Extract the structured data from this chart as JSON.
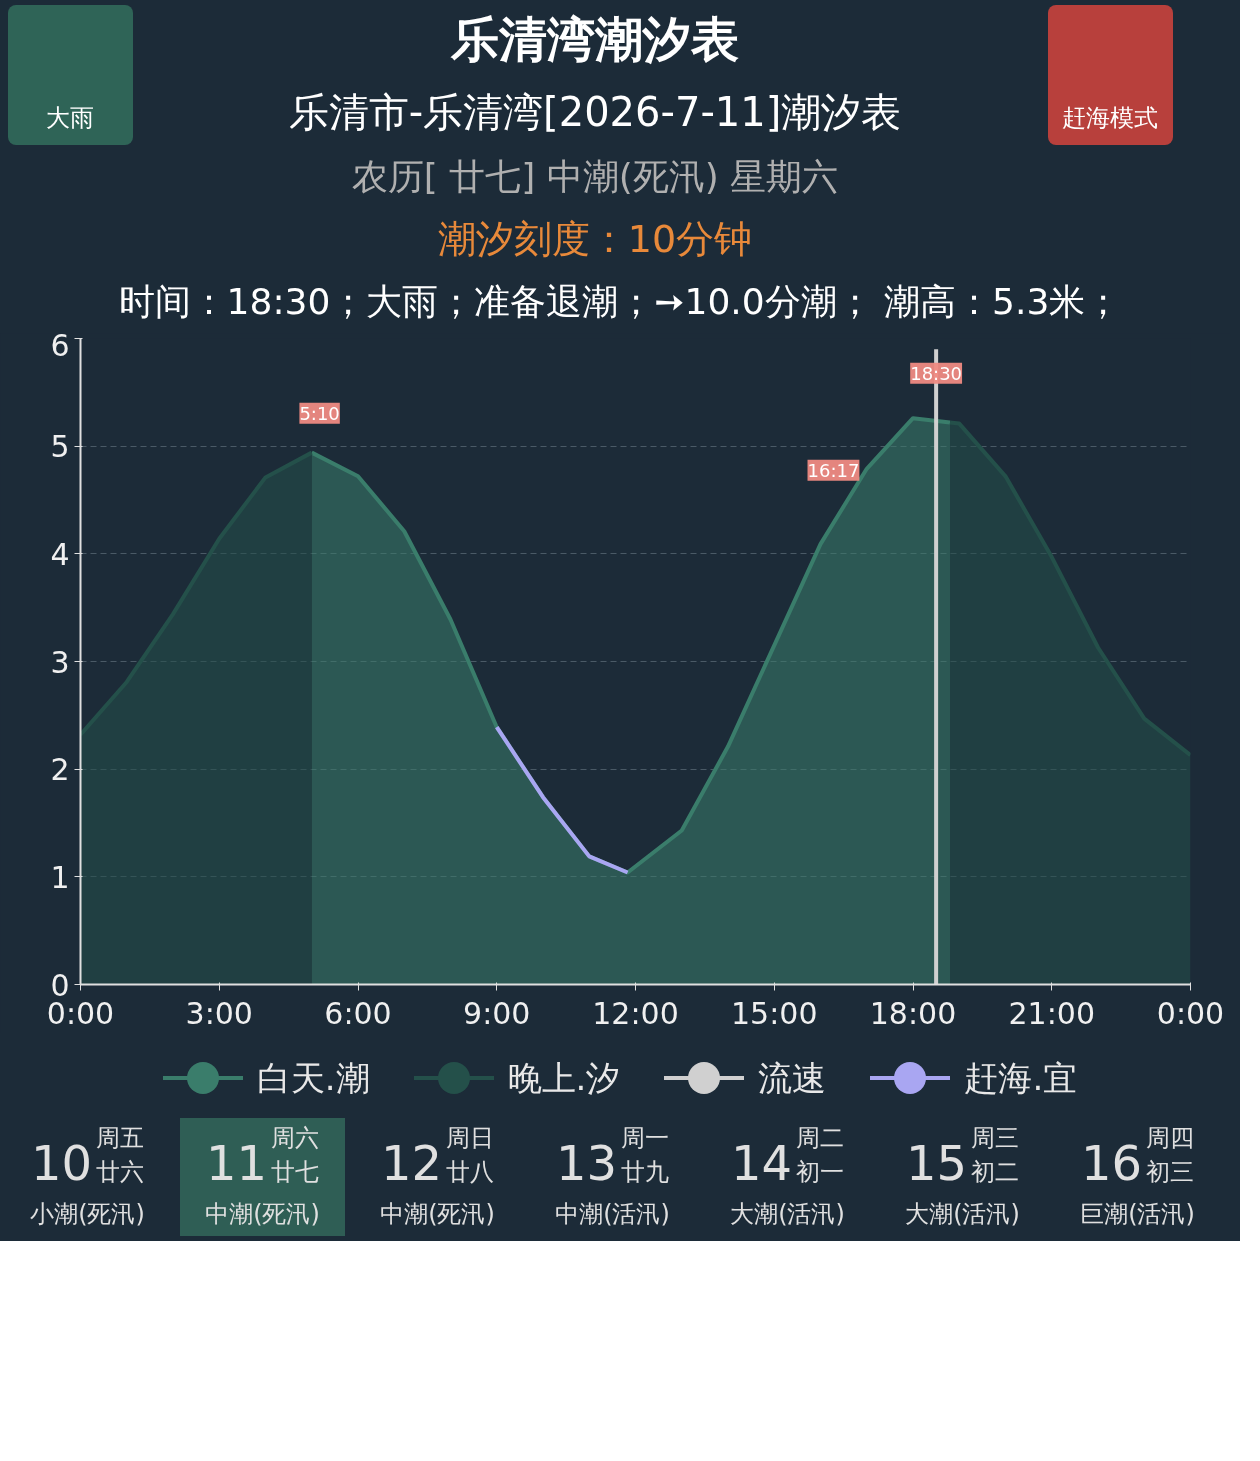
{
  "chart_data": {
    "type": "area",
    "title": "乐清市-乐清湾[2026-7-11]潮汐表",
    "subtitle": "农历[ 廿七] 中潮(死汛) 星期六",
    "annotations": [
      "乐清湾潮汐表",
      "潮汐刻度：10分钟",
      "大雨",
      "赶海模式",
      "时间：18:30；大雨；准备退潮；➙10.0分潮； 潮高：5.3米；",
      "10",
      "周五",
      "廿六",
      "小潮(死汛)",
      "11",
      "周六",
      "廿七",
      "中潮(死汛)",
      "12",
      "周日",
      "廿八",
      "中潮(死汛)",
      "13",
      "周一",
      "廿九",
      "中潮(活汛)",
      "14",
      "周二",
      "初一",
      "大潮(活汛)",
      "15",
      "周三",
      "初二",
      "大潮(活汛)",
      "16",
      "周四",
      "初三",
      "巨潮(活汛)",
      {
        "text": "5:10",
        "x": 5.17,
        "y": 4.93
      },
      {
        "text": "16:17",
        "x": 16.28,
        "y": 4.4
      },
      {
        "text": "18:30",
        "x": 18.5,
        "y": 5.3
      }
    ],
    "series": [
      {
        "name": "白天.潮",
        "color": "#3a7d6b",
        "x": [
          5,
          6,
          7,
          8,
          9,
          10,
          11,
          11.83,
          13,
          14,
          15,
          16,
          17,
          18,
          18.8
        ],
        "values": [
          4.94,
          4.72,
          4.21,
          3.39,
          2.39,
          1.74,
          1.19,
          1.04,
          1.43,
          2.21,
          3.15,
          4.09,
          4.79,
          5.26,
          5.22
        ]
      },
      {
        "name": "晚上.汐",
        "color": "#24504a",
        "x": [
          0,
          1,
          2,
          3,
          4,
          5,
          12,
          18.8,
          19,
          20,
          21,
          22,
          23,
          24
        ],
        "values": [
          2.32,
          2.81,
          3.44,
          4.14,
          4.71,
          4.94,
          null,
          5.22,
          5.21,
          4.72,
          3.97,
          3.13,
          2.47,
          2.13
        ]
      },
      {
        "name": "流速",
        "type": "line",
        "color": "#d0d0d0",
        "x": [
          18.5,
          18.5
        ],
        "values": [
          0,
          5.9
        ]
      },
      {
        "name": "赶海.宜",
        "type": "line",
        "color": "#a9a6f2",
        "x": [
          9,
          10,
          11,
          11.83
        ],
        "values": [
          2.39,
          1.74,
          1.19,
          1.04
        ]
      }
    ],
    "xlim": [
      0,
      24
    ],
    "ylim": [
      0,
      6
    ],
    "xticks": [
      {
        "value": 0,
        "label": "0:00"
      },
      {
        "value": 3,
        "label": "3:00"
      },
      {
        "value": 6,
        "label": "6:00"
      },
      {
        "value": 9,
        "label": "9:00"
      },
      {
        "value": 12,
        "label": "12:00"
      },
      {
        "value": 15,
        "label": "15:00"
      },
      {
        "value": 18,
        "label": "18:00"
      },
      {
        "value": 21,
        "label": "21:00"
      },
      {
        "value": 24,
        "label": "0:00"
      }
    ],
    "yticks": [
      0,
      1,
      2,
      3,
      4,
      5,
      6
    ],
    "grid": "y",
    "legend": "bottom"
  }
}
